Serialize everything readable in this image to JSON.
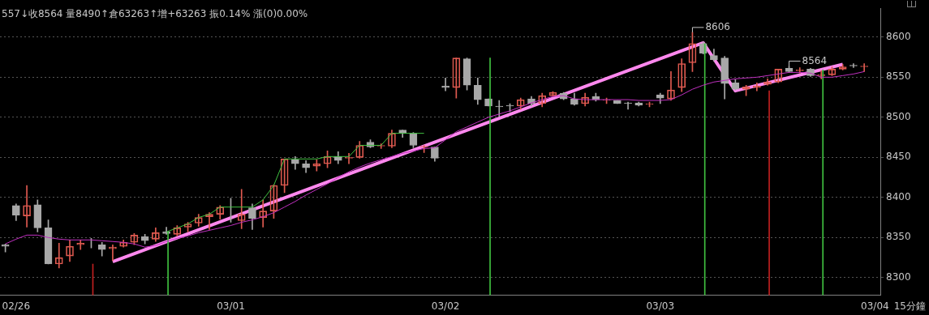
{
  "chart_data": {
    "type": "candlestick",
    "title": "557↓收8564 量8490↑倉63263↑增+63263 振0.14% 漲(0)0.00%",
    "categories": [
      null,
      "02/26",
      null,
      null,
      null,
      null,
      null,
      null,
      null,
      null,
      null,
      null,
      null,
      null,
      null,
      null,
      null,
      null,
      null,
      null,
      null,
      "03/01",
      null,
      null,
      null,
      null,
      null,
      null,
      null,
      null,
      null,
      null,
      null,
      null,
      null,
      null,
      null,
      null,
      null,
      null,
      null,
      "03/02",
      null,
      null,
      null,
      null,
      null,
      null,
      null,
      null,
      null,
      null,
      null,
      null,
      null,
      null,
      null,
      null,
      null,
      null,
      null,
      "03/03",
      null,
      null,
      null,
      null,
      null,
      null,
      null,
      null,
      null,
      null,
      null,
      null,
      null,
      null,
      null,
      null,
      null,
      null,
      null,
      "03/04"
    ],
    "ohlc": [
      [
        8341,
        8342,
        8332,
        8339
      ],
      [
        8390,
        8392,
        8371,
        8378
      ],
      [
        8377,
        8415,
        8363,
        8390
      ],
      [
        8391,
        8397,
        8357,
        8362
      ],
      [
        8362,
        8372,
        8317,
        8317
      ],
      [
        8317,
        8343,
        8312,
        8325
      ],
      [
        8327,
        8347,
        8320,
        8339
      ],
      [
        8341,
        8347,
        8335,
        8343
      ],
      [
        8343,
        8349,
        8337,
        8343
      ],
      [
        8341,
        8344,
        8327,
        8335
      ],
      [
        8336,
        8341,
        8321,
        8338
      ],
      [
        8339,
        8347,
        8338,
        8344
      ],
      [
        8344,
        8355,
        8341,
        8353
      ],
      [
        8351,
        8354,
        8342,
        8346
      ],
      [
        8348,
        8362,
        8345,
        8356
      ],
      [
        8357,
        8363,
        8354,
        8355
      ],
      [
        8354,
        8365,
        8352,
        8362
      ],
      [
        8363,
        8369,
        8357,
        8367
      ],
      [
        8368,
        8379,
        8364,
        8375
      ],
      [
        8376,
        8381,
        8360,
        8379
      ],
      [
        8379,
        8390,
        8373,
        8388
      ],
      [
        8371,
        8399,
        8369,
        8371
      ],
      [
        8371,
        8410,
        8361,
        8379
      ],
      [
        8387,
        8392,
        8360,
        8374
      ],
      [
        8375,
        8397,
        8363,
        8383
      ],
      [
        8383,
        8416,
        8374,
        8415
      ],
      [
        8415,
        8448,
        8406,
        8448
      ],
      [
        8447,
        8451,
        8435,
        8442
      ],
      [
        8442,
        8446,
        8431,
        8437
      ],
      [
        8439,
        8447,
        8433,
        8442
      ],
      [
        8442,
        8458,
        8437,
        8451
      ],
      [
        8451,
        8457,
        8442,
        8446
      ],
      [
        8449,
        8455,
        8442,
        8450
      ],
      [
        8450,
        8470,
        8449,
        8465
      ],
      [
        8469,
        8472,
        8462,
        8463
      ],
      [
        8464,
        8467,
        8461,
        8465
      ],
      [
        8464,
        8484,
        8462,
        8480
      ],
      [
        8484,
        8484,
        8475,
        8480
      ],
      [
        8480,
        8481,
        8462,
        8465
      ],
      [
        8463,
        8465,
        8456,
        8464
      ],
      [
        8463,
        8463,
        8445,
        8449
      ],
      [
        8539,
        8549,
        8533,
        8537
      ],
      [
        8537,
        8574,
        8524,
        8574
      ],
      [
        8573,
        8574,
        8534,
        8540
      ],
      [
        8540,
        8549,
        8516,
        8522
      ],
      [
        8523,
        8523,
        8514,
        8514
      ],
      [
        8514,
        8521,
        8501,
        8513
      ],
      [
        8515,
        8517,
        8507,
        8514
      ],
      [
        8514,
        8524,
        8510,
        8522
      ],
      [
        8523,
        8526,
        8514,
        8517
      ],
      [
        8517,
        8530,
        8513,
        8527
      ],
      [
        8527,
        8532,
        8526,
        8531
      ],
      [
        8530,
        8531,
        8522,
        8523
      ],
      [
        8523,
        8530,
        8515,
        8516
      ],
      [
        8517,
        8530,
        8514,
        8525
      ],
      [
        8526,
        8530,
        8520,
        8522
      ],
      [
        8521,
        8524,
        8517,
        8522
      ],
      [
        8521,
        8521,
        8517,
        8517
      ],
      [
        8518,
        8519,
        8510,
        8517
      ],
      [
        8518,
        8519,
        8514,
        8515
      ],
      [
        8516,
        8519,
        8513,
        8517
      ],
      [
        8528,
        8530,
        8517,
        8524
      ],
      [
        8523,
        8557,
        8521,
        8534
      ],
      [
        8537,
        8573,
        8532,
        8567
      ],
      [
        8568,
        8606,
        8557,
        8592
      ],
      [
        8592,
        8594,
        8579,
        8580
      ],
      [
        8577,
        8585,
        8570,
        8572
      ],
      [
        8574,
        8576,
        8523,
        8542
      ],
      [
        8543,
        8547,
        8534,
        8535
      ],
      [
        8535,
        8540,
        8527,
        8538
      ],
      [
        8537,
        8543,
        8533,
        8539
      ],
      [
        8541,
        8548,
        8540,
        8544
      ],
      [
        8544,
        8560,
        8543,
        8560
      ],
      [
        8561,
        8564,
        8556,
        8557
      ],
      [
        8558,
        8562,
        8555,
        8559
      ],
      [
        8560,
        8561,
        8551,
        8552
      ],
      [
        8552,
        8558,
        8548,
        8553
      ],
      [
        8553,
        8563,
        8552,
        8560
      ],
      [
        8560,
        8566,
        8559,
        8563
      ],
      [
        8565,
        8567,
        8562,
        8564
      ],
      [
        8563,
        8567,
        8557,
        8564
      ],
      null
    ],
    "colors": [
      "#a8a8a8",
      "#a8a8a8",
      "#e05a50",
      "#a8a8a8",
      "#a8a8a8",
      "#e05a50",
      "#e05a50",
      "#e05a50",
      "#a8a8a8",
      "#a8a8a8",
      "#e05a50",
      "#e05a50",
      "#e05a50",
      "#a8a8a8",
      "#e05a50",
      "#a8a8a8",
      "#e05a50",
      "#e05a50",
      "#e05a50",
      "#e05a50",
      "#e05a50",
      "#a8a8a8",
      "#e05a50",
      "#a8a8a8",
      "#e05a50",
      "#e05a50",
      "#e05a50",
      "#a8a8a8",
      "#a8a8a8",
      "#e05a50",
      "#e05a50",
      "#a8a8a8",
      "#e05a50",
      "#e05a50",
      "#a8a8a8",
      "#e05a50",
      "#e05a50",
      "#a8a8a8",
      "#a8a8a8",
      "#e05a50",
      "#a8a8a8",
      "#a8a8a8",
      "#e05a50",
      "#a8a8a8",
      "#a8a8a8",
      "#a8a8a8",
      "#a8a8a8",
      "#a8a8a8",
      "#e05a50",
      "#a8a8a8",
      "#e05a50",
      "#e05a50",
      "#a8a8a8",
      "#a8a8a8",
      "#e05a50",
      "#a8a8a8",
      "#e05a50",
      "#a8a8a8",
      "#a8a8a8",
      "#a8a8a8",
      "#e05a50",
      "#a8a8a8",
      "#e05a50",
      "#e05a50",
      "#e05a50",
      "#a8a8a8",
      "#a8a8a8",
      "#a8a8a8",
      "#a8a8a8",
      "#e05a50",
      "#e05a50",
      "#e05a50",
      "#e05a50",
      "#a8a8a8",
      "#e05a50",
      "#a8a8a8",
      "#e05a50",
      "#e05a50",
      "#e05a50",
      "#a8a8a8",
      "#e05a50",
      null
    ],
    "series": [
      {
        "type": "line",
        "color": "#c030c0",
        "values": [
          8342,
          8348,
          8353,
          8353,
          8350,
          8348,
          8347,
          8347,
          8347,
          8346,
          8345,
          8344,
          8342,
          8338,
          8340,
          8345,
          8349,
          8352,
          8356,
          8359,
          8362,
          8365,
          8369,
          8372,
          8376,
          8381,
          8388,
          8395,
          8403,
          8410,
          8417,
          8425,
          8432,
          8438,
          8443,
          8447,
          8451,
          8455,
          8458,
          8461,
          8462,
          8472,
          8482,
          8488,
          8494,
          8500,
          8504,
          8508,
          8513,
          8518,
          8522,
          8526,
          8527,
          8523,
          8522,
          8522,
          8522,
          8522,
          8522,
          8521,
          8521,
          8521,
          8522,
          8528,
          8535,
          8540,
          8544,
          8546,
          8548,
          8549,
          8550,
          8552,
          8554,
          8556,
          8556,
          8555,
          8550,
          8550,
          8552,
          8554,
          8557,
          null
        ]
      },
      {
        "type": "line",
        "color": "#40c040",
        "values": [
          null,
          null,
          null,
          null,
          null,
          null,
          null,
          null,
          null,
          null,
          null,
          null,
          null,
          null,
          null,
          8357,
          8362,
          8367,
          8375,
          8379,
          8388,
          8388,
          8388,
          8388,
          8397,
          8415,
          8448,
          8448,
          8448,
          8448,
          8451,
          8451,
          8451,
          8465,
          8465,
          8465,
          8480,
          8480,
          8480,
          8480,
          null,
          null,
          null,
          null,
          null,
          null,
          null,
          null,
          null,
          null,
          null,
          null,
          null,
          null,
          null,
          null,
          null,
          null,
          null,
          null,
          null,
          null,
          null,
          null,
          null,
          null,
          null,
          null,
          null,
          null,
          null,
          null,
          null,
          null,
          null,
          null,
          null,
          null,
          null,
          null,
          null,
          null
        ]
      },
      {
        "type": "bar",
        "colors": [
          null,
          null,
          null,
          null,
          null,
          null,
          null,
          null,
          "#c02020",
          null,
          null,
          null,
          null,
          null,
          null,
          "#40c040",
          null,
          null,
          null,
          null,
          null,
          null,
          null,
          null,
          null,
          null,
          null,
          null,
          null,
          null,
          null,
          null,
          null,
          null,
          null,
          null,
          null,
          null,
          null,
          null,
          null,
          null,
          null,
          null,
          null,
          "#40c040",
          null,
          null,
          null,
          null,
          null,
          null,
          null,
          null,
          null,
          null,
          null,
          null,
          null,
          null,
          null,
          null,
          null,
          null,
          null,
          "#40c040",
          null,
          null,
          null,
          null,
          null,
          "#c02020",
          null,
          null,
          null,
          null,
          "#40c040",
          null,
          null,
          null,
          null,
          null
        ],
        "values": [
          null,
          null,
          null,
          null,
          null,
          null,
          null,
          null,
          8317,
          null,
          null,
          null,
          null,
          null,
          null,
          8357,
          null,
          null,
          null,
          null,
          null,
          null,
          null,
          null,
          null,
          null,
          null,
          null,
          null,
          null,
          null,
          null,
          null,
          null,
          null,
          null,
          null,
          null,
          null,
          null,
          null,
          null,
          null,
          null,
          null,
          8574,
          null,
          null,
          null,
          null,
          null,
          null,
          null,
          null,
          null,
          null,
          null,
          null,
          null,
          null,
          null,
          null,
          null,
          null,
          null,
          8592,
          null,
          null,
          null,
          null,
          null,
          8533,
          null,
          null,
          null,
          null,
          8559,
          null,
          null,
          null,
          null,
          null
        ]
      },
      {
        "type": "line",
        "color": "#ff88ee",
        "values": [
          null,
          null,
          null,
          null,
          null,
          null,
          null,
          null,
          null,
          null,
          8320,
          null,
          null,
          null,
          null,
          null,
          null,
          null,
          null,
          null,
          null,
          null,
          null,
          null,
          null,
          null,
          null,
          null,
          null,
          null,
          null,
          null,
          null,
          null,
          null,
          null,
          null,
          null,
          null,
          null,
          null,
          null,
          null,
          null,
          null,
          null,
          null,
          null,
          null,
          null,
          null,
          null,
          null,
          null,
          null,
          null,
          null,
          null,
          null,
          null,
          null,
          null,
          null,
          null,
          null,
          8593,
          null,
          null,
          8533,
          null,
          null,
          null,
          null,
          null,
          null,
          null,
          null,
          null,
          8566,
          null,
          null,
          null
        ]
      }
    ],
    "ylim": [
      8278,
      8636
    ],
    "yticks": [
      8300,
      8350,
      8400,
      8450,
      8500,
      8550,
      8600
    ],
    "grid": "y",
    "legend": false,
    "annotations": [
      "15分鐘",
      "8606",
      {
        "text": "8564",
        "y": 8564
      }
    ]
  }
}
